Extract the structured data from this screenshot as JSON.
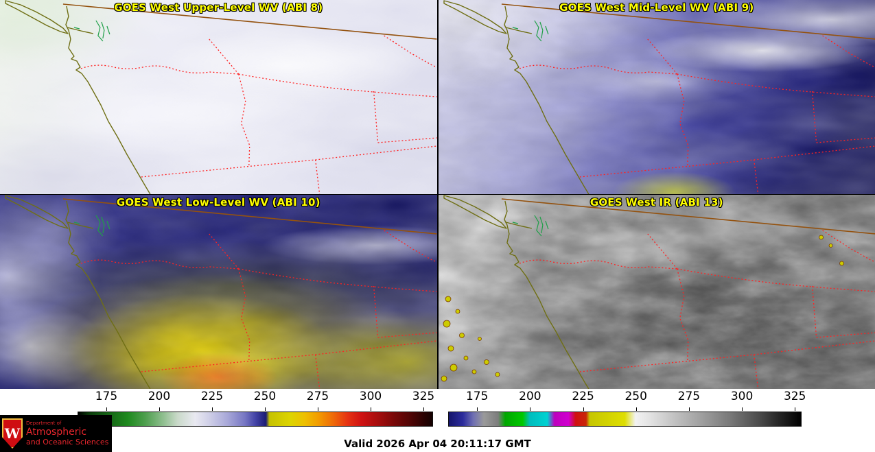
{
  "panels": [
    {
      "title": "GOES West Upper-Level WV (ABI 8)"
    },
    {
      "title": "GOES West Mid-Level WV (ABI 9)"
    },
    {
      "title": "GOES West Low-Level WV (ABI 10)"
    },
    {
      "title": "GOES West IR (ABI 13)"
    }
  ],
  "colorbars": {
    "wv": {
      "ticks": [
        "175",
        "200",
        "225",
        "250",
        "275",
        "300",
        "325"
      ],
      "stops": [
        [
          "#000000",
          0
        ],
        [
          "#0b3b0b",
          3
        ],
        [
          "#156015",
          8
        ],
        [
          "#1f8a1f",
          14
        ],
        [
          "#4f9f4f",
          19
        ],
        [
          "#8fbf8f",
          24
        ],
        [
          "#c9d9c9",
          28
        ],
        [
          "#e9e9f1",
          33
        ],
        [
          "#cfcfe7",
          37
        ],
        [
          "#a9a9d9",
          42
        ],
        [
          "#7777c3",
          47
        ],
        [
          "#4444a7",
          50
        ],
        [
          "#1b1b74",
          53
        ],
        [
          "#c6c200",
          54
        ],
        [
          "#ddd400",
          60
        ],
        [
          "#eebf00",
          64
        ],
        [
          "#f29a00",
          68
        ],
        [
          "#ef6a08",
          72
        ],
        [
          "#e63312",
          76
        ],
        [
          "#cf1212",
          80
        ],
        [
          "#a30d0d",
          85
        ],
        [
          "#7a0808",
          89
        ],
        [
          "#4e0505",
          94
        ],
        [
          "#260202",
          98
        ],
        [
          "#140101",
          100
        ]
      ]
    },
    "ir": {
      "ticks": [
        "175",
        "200",
        "225",
        "250",
        "275",
        "300",
        "325"
      ],
      "stops": [
        [
          "#15156b",
          0
        ],
        [
          "#2c2c9c",
          4
        ],
        [
          "#7070b2",
          7
        ],
        [
          "#9a9a9a",
          10
        ],
        [
          "#7d7d7d",
          14
        ],
        [
          "#00a600",
          16
        ],
        [
          "#00c800",
          21
        ],
        [
          "#00bdbd",
          23
        ],
        [
          "#00d2d2",
          28
        ],
        [
          "#bd00bd",
          30
        ],
        [
          "#d000d0",
          34
        ],
        [
          "#d01010",
          36
        ],
        [
          "#c92708",
          39
        ],
        [
          "#c6c600",
          40
        ],
        [
          "#dede00",
          50
        ],
        [
          "#f2f2f2",
          53
        ],
        [
          "#e3e3e3",
          57
        ],
        [
          "#c2c2c2",
          64
        ],
        [
          "#9e9e9e",
          72
        ],
        [
          "#787878",
          80
        ],
        [
          "#4c4c4c",
          88
        ],
        [
          "#242424",
          94
        ],
        [
          "#000000",
          100
        ]
      ]
    }
  },
  "footer": {
    "valid_label": "Valid 2026 Apr 04 20:11:17 GMT",
    "logo": {
      "letter": "W",
      "dept": "Department of",
      "line1": "Atmospheric",
      "line2": "and Oceanic Sciences"
    }
  },
  "colors": {
    "panel_title": "#ffff00",
    "state_border_dotted": "#ff2222",
    "coastline": "#6f6f14",
    "canada_border": "#94520f",
    "water_inlets": "#1fa048",
    "logo_red": "#e8262d",
    "valid_text": "#000000",
    "divider": "#000000",
    "background": "#ffffff"
  }
}
